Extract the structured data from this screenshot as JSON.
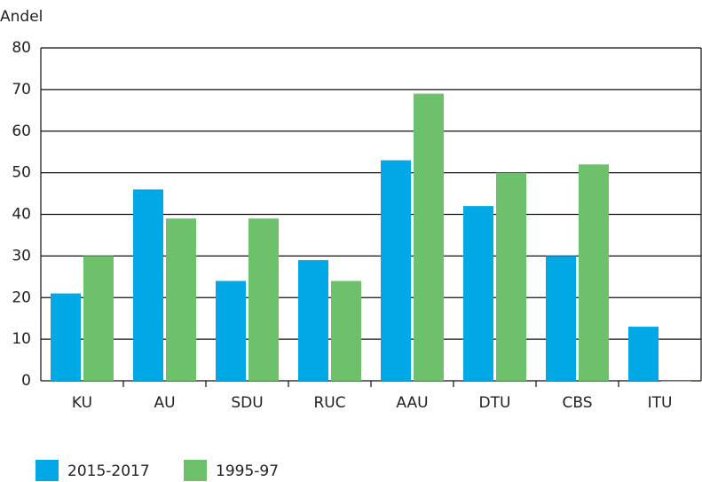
{
  "chart_data": {
    "type": "bar",
    "y_label": "Andel",
    "categories": [
      "KU",
      "AU",
      "SDU",
      "RUC",
      "AAU",
      "DTU",
      "CBS",
      "ITU"
    ],
    "series": [
      {
        "name": "2015-2017",
        "color": "#00a9e6",
        "values": [
          21,
          46,
          24,
          29,
          53,
          42,
          30,
          13
        ]
      },
      {
        "name": "1995-97",
        "color": "#6cc16a",
        "values": [
          30,
          39,
          39,
          24,
          69,
          50,
          52,
          0
        ]
      }
    ],
    "ylim": [
      0,
      80
    ],
    "yticks": [
      0,
      10,
      20,
      30,
      40,
      50,
      60,
      70,
      80
    ],
    "grid": true,
    "legend": "bottom-left"
  }
}
